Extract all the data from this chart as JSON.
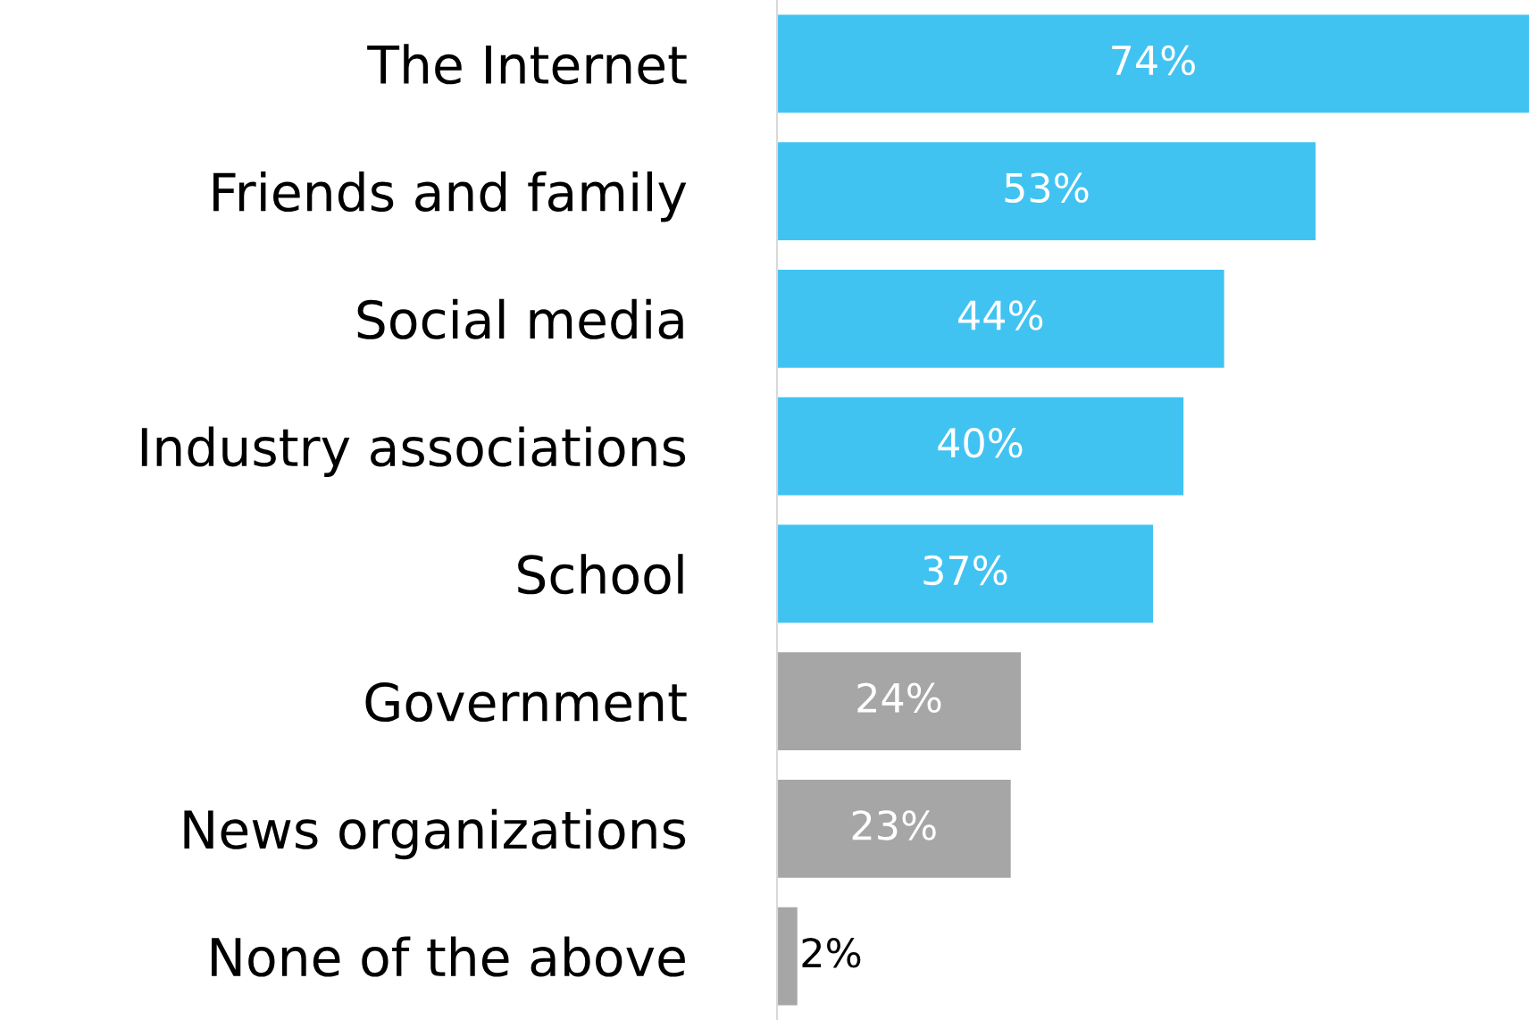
{
  "chart_data": {
    "type": "bar",
    "orientation": "horizontal",
    "categories": [
      "The Internet",
      "Friends and family",
      "Social media",
      "Industry associations",
      "School",
      "Government",
      "News organizations",
      "None of the above"
    ],
    "values": [
      74,
      53,
      44,
      40,
      37,
      24,
      23,
      2
    ],
    "value_labels": [
      "74%",
      "53%",
      "44%",
      "40%",
      "37%",
      "24%",
      "23%",
      "2%"
    ],
    "colors": [
      "#41c3f2",
      "#41c3f2",
      "#41c3f2",
      "#41c3f2",
      "#41c3f2",
      "#a6a6a6",
      "#a6a6a6",
      "#a6a6a6"
    ],
    "grid": false,
    "legend": false
  }
}
